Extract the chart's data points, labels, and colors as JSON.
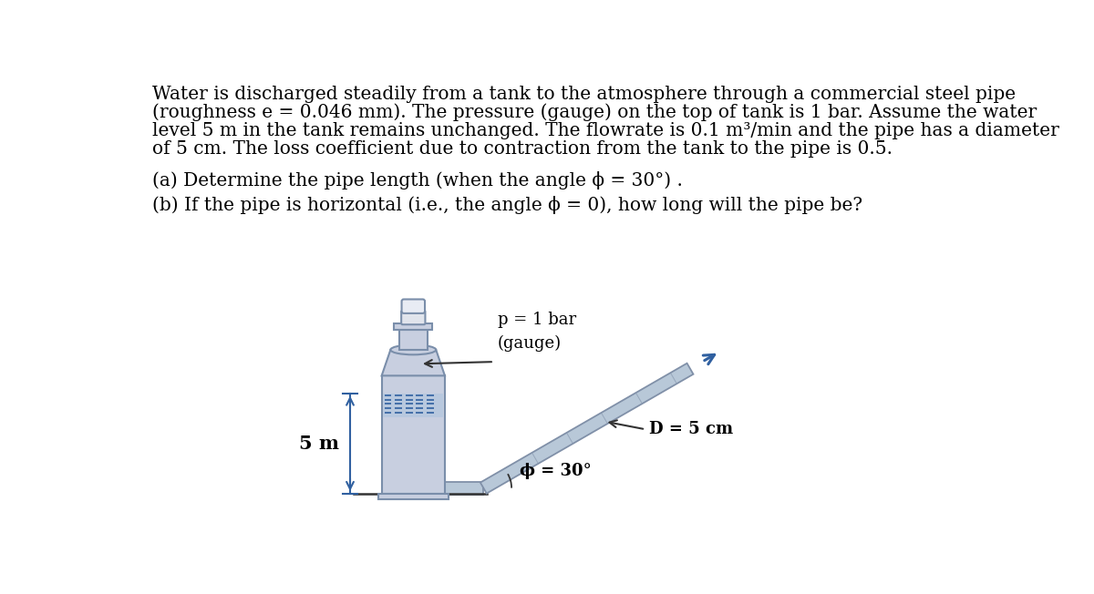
{
  "background_color": "#ffffff",
  "text_color": "#000000",
  "main_text_line1": "Water is discharged steadily from a tank to the atmosphere through a commercial steel pipe",
  "main_text_line2": "(roughness e = 0.046 mm). The pressure (gauge) on the top of tank is 1 bar. Assume the water",
  "main_text_line3": "level 5 m in the tank remains unchanged. The flowrate is 0.1 m³/min and the pipe has a diameter",
  "main_text_line4": "of 5 cm. The loss coefficient due to contraction from the tank to the pipe is 0.5.",
  "part_a": "(a) Determine the pipe length (when the angle ϕ = 30°) .",
  "part_b": "(b) If the pipe is horizontal (i.e., the angle ϕ = 0), how long will the pipe be?",
  "label_p": "p = 1 bar\n(gauge)",
  "label_D": "D = 5 cm",
  "label_5m": "5 m",
  "label_angle": "ϕ = 30°",
  "tank_body_color": "#c8cfe0",
  "tank_edge_color": "#7a8eaa",
  "water_color": "#b8c8de",
  "pipe_color": "#b8c8d8",
  "pipe_edge_color": "#8090a8",
  "arrow_color": "#3060a0",
  "dim_line_color": "#3060a0",
  "text_fontsize": 14.5,
  "label_fontsize": 13.0
}
